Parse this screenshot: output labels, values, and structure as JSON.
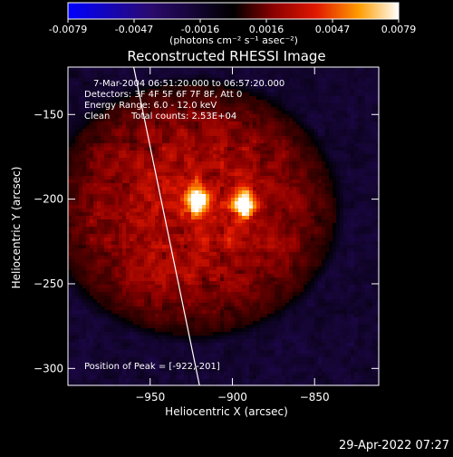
{
  "colorbar": {
    "ticks": [
      "-0.0079",
      "-0.0047",
      "-0.0016",
      "0.0016",
      "0.0047",
      "0.0079"
    ],
    "units_line": "(photons cm⁻² s⁻¹ asec⁻²)"
  },
  "annotations": {
    "time": "7-Mar-2004 06:51:20.000 to 06:57:20.000",
    "detectors": "Detectors: 3F 4F 5F 6F 7F 8F, Att 0",
    "energy": "Energy Range: 6.0 - 12.0 keV",
    "method": "Clean",
    "counts": "Total counts: 2.53E+04",
    "peak": "Position of Peak = [-922,-201]"
  },
  "footer": {
    "timestamp": "29-Apr-2022 07:27"
  },
  "chart_data": {
    "type": "heatmap",
    "title": "Reconstructed RHESSI Image",
    "xlabel": "Heliocentric X (arcsec)",
    "ylabel": "Heliocentric Y (arcsec)",
    "xlim": [
      -1000,
      -811
    ],
    "ylim": [
      -310,
      -122
    ],
    "xticks": [
      -950,
      -900,
      -850
    ],
    "yticks": [
      -150,
      -200,
      -250,
      -300
    ],
    "clim": [
      -0.0079,
      0.0079
    ],
    "colormap": "RHESSI blue-black-red-yellow-white",
    "sources": [
      {
        "x": -922,
        "y": -201,
        "peak": 0.0079
      },
      {
        "x": -893,
        "y": -203,
        "peak": 0.0068
      }
    ],
    "limb_line": [
      [
        -960,
        -122
      ],
      [
        -920,
        -310
      ]
    ]
  }
}
